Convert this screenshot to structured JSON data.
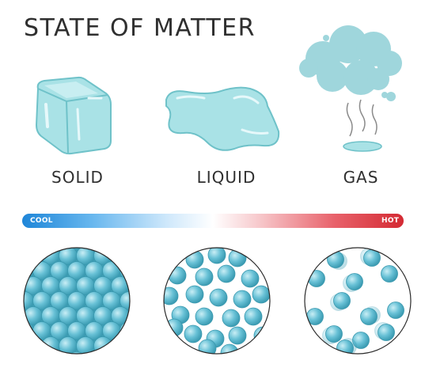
{
  "title": "STATE OF MATTER",
  "states": [
    {
      "label": "SOLID"
    },
    {
      "label": "LIQUID"
    },
    {
      "label": "GAS"
    }
  ],
  "temperature_bar": {
    "left_label": "COOL",
    "right_label": "HOT"
  },
  "colors": {
    "ice": "#a9e2e6",
    "ice_outline": "#6fc2c9",
    "particle": "#5bb9cf",
    "particle_light": "#9ad8e6",
    "cool": "#1f86d8",
    "hot": "#d42a33",
    "text": "#2f2f2f"
  }
}
